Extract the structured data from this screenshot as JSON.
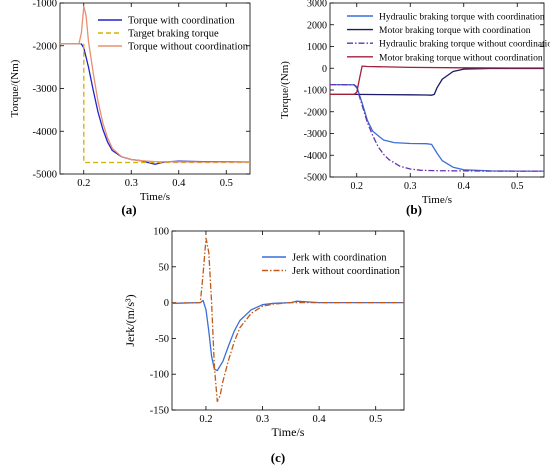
{
  "panel_labels": [
    "(a)",
    "(b)",
    "(c)"
  ],
  "chart_data": [
    {
      "type": "line",
      "panel": "(a)",
      "xlabel": "Time/s",
      "ylabel": "Torque/(Nm)",
      "xlim": [
        0.15,
        0.55
      ],
      "ylim": [
        -5000,
        -1000
      ],
      "xticks": [
        0.2,
        0.3,
        0.4,
        0.5
      ],
      "yticks": [
        -5000,
        -4000,
        -3000,
        -2000,
        -1000
      ],
      "grid": false,
      "legend_position": "top-right",
      "series": [
        {
          "name": "Torque with coordination",
          "color": "#2222cc",
          "dash": "solid",
          "x": [
            0.15,
            0.19,
            0.195,
            0.2,
            0.21,
            0.22,
            0.23,
            0.24,
            0.25,
            0.26,
            0.28,
            0.3,
            0.32,
            0.35,
            0.37,
            0.4,
            0.45,
            0.5,
            0.55
          ],
          "y": [
            -1950,
            -1950,
            -1960,
            -2050,
            -2500,
            -3050,
            -3550,
            -3950,
            -4250,
            -4450,
            -4600,
            -4660,
            -4690,
            -4770,
            -4720,
            -4700,
            -4710,
            -4715,
            -4720
          ]
        },
        {
          "name": "Target braking torque",
          "color": "#d4b000",
          "dash": "dashed",
          "x": [
            0.15,
            0.2,
            0.2,
            0.55
          ],
          "y": [
            -1950,
            -1950,
            -4730,
            -4730
          ]
        },
        {
          "name": "Torque without coordination",
          "color": "#e89070",
          "dash": "solid",
          "x": [
            0.15,
            0.19,
            0.195,
            0.2,
            0.205,
            0.21,
            0.22,
            0.23,
            0.24,
            0.25,
            0.26,
            0.28,
            0.3,
            0.32,
            0.35,
            0.4,
            0.45,
            0.5,
            0.55
          ],
          "y": [
            -1950,
            -1950,
            -1700,
            -1080,
            -1300,
            -1900,
            -2650,
            -3300,
            -3800,
            -4150,
            -4400,
            -4600,
            -4660,
            -4690,
            -4710,
            -4715,
            -4720,
            -4720,
            -4720
          ]
        }
      ]
    },
    {
      "type": "line",
      "panel": "(b)",
      "xlabel": "Time/s",
      "ylabel": "Torque/(Nm)",
      "xlim": [
        0.15,
        0.55
      ],
      "ylim": [
        -5000,
        3000
      ],
      "xticks": [
        0.2,
        0.3,
        0.4,
        0.5
      ],
      "yticks": [
        -5000,
        -4000,
        -3000,
        -2000,
        -1000,
        0,
        1000,
        2000,
        3000
      ],
      "grid": false,
      "legend_position": "top-right",
      "series": [
        {
          "name": "Hydraulic braking torque with coordination",
          "color": "#3a6fd8",
          "dash": "solid",
          "x": [
            0.15,
            0.195,
            0.2,
            0.21,
            0.22,
            0.23,
            0.25,
            0.27,
            0.3,
            0.33,
            0.34,
            0.35,
            0.36,
            0.38,
            0.4,
            0.45,
            0.5,
            0.55
          ],
          "y": [
            -750,
            -760,
            -850,
            -1600,
            -2400,
            -2900,
            -3300,
            -3420,
            -3460,
            -3470,
            -3500,
            -3900,
            -4250,
            -4550,
            -4670,
            -4720,
            -4730,
            -4730
          ]
        },
        {
          "name": "Motor braking torque with coordination",
          "color": "#1a1a66",
          "dash": "solid",
          "x": [
            0.15,
            0.2,
            0.25,
            0.3,
            0.33,
            0.34,
            0.345,
            0.35,
            0.36,
            0.38,
            0.4,
            0.45,
            0.5,
            0.55
          ],
          "y": [
            -1200,
            -1200,
            -1210,
            -1220,
            -1230,
            -1240,
            -1200,
            -900,
            -500,
            -150,
            -40,
            -10,
            -10,
            -10
          ]
        },
        {
          "name": "Hydraulic braking torque without coordination",
          "color": "#6633aa",
          "dash": "dashdot",
          "x": [
            0.15,
            0.195,
            0.2,
            0.21,
            0.22,
            0.23,
            0.24,
            0.25,
            0.26,
            0.28,
            0.3,
            0.32,
            0.35,
            0.4,
            0.45,
            0.5,
            0.55
          ],
          "y": [
            -750,
            -760,
            -900,
            -1700,
            -2500,
            -3100,
            -3600,
            -3950,
            -4200,
            -4500,
            -4630,
            -4690,
            -4710,
            -4720,
            -4730,
            -4730,
            -4730
          ]
        },
        {
          "name": "Motor braking torque without coordination",
          "color": "#a0203a",
          "dash": "solid",
          "x": [
            0.15,
            0.195,
            0.2,
            0.205,
            0.21,
            0.22,
            0.3,
            0.4,
            0.5,
            0.55
          ],
          "y": [
            -1200,
            -1200,
            -1100,
            -500,
            100,
            80,
            40,
            20,
            10,
            10
          ]
        }
      ]
    },
    {
      "type": "line",
      "panel": "(c)",
      "xlabel": "Time/s",
      "ylabel": "Jerk/(m/s³)",
      "xlim": [
        0.14,
        0.55
      ],
      "ylim": [
        -150,
        100
      ],
      "xticks": [
        0.2,
        0.3,
        0.4,
        0.5
      ],
      "yticks": [
        -150,
        -100,
        -50,
        0,
        50,
        100
      ],
      "grid": false,
      "legend_position": "top-right",
      "series": [
        {
          "name": "Jerk with coordination",
          "color": "#3a6fd8",
          "dash": "solid",
          "x": [
            0.14,
            0.19,
            0.195,
            0.2,
            0.205,
            0.21,
            0.215,
            0.22,
            0.23,
            0.24,
            0.25,
            0.26,
            0.28,
            0.3,
            0.32,
            0.35,
            0.36,
            0.4,
            0.45,
            0.5,
            0.55
          ],
          "y": [
            -1,
            0,
            3,
            -10,
            -40,
            -75,
            -93,
            -95,
            -82,
            -60,
            -40,
            -25,
            -10,
            -3,
            -1,
            0,
            2,
            0,
            0,
            0,
            0
          ]
        },
        {
          "name": "Jerk without coordination",
          "color": "#c05a1a",
          "dash": "dashdot",
          "x": [
            0.14,
            0.19,
            0.195,
            0.2,
            0.205,
            0.21,
            0.215,
            0.22,
            0.225,
            0.23,
            0.24,
            0.25,
            0.26,
            0.28,
            0.3,
            0.32,
            0.35,
            0.4,
            0.45,
            0.5,
            0.55
          ],
          "y": [
            -1,
            0,
            40,
            90,
            70,
            0,
            -90,
            -138,
            -130,
            -110,
            -80,
            -55,
            -35,
            -15,
            -5,
            -2,
            0,
            0,
            0,
            0,
            0
          ]
        }
      ]
    }
  ]
}
